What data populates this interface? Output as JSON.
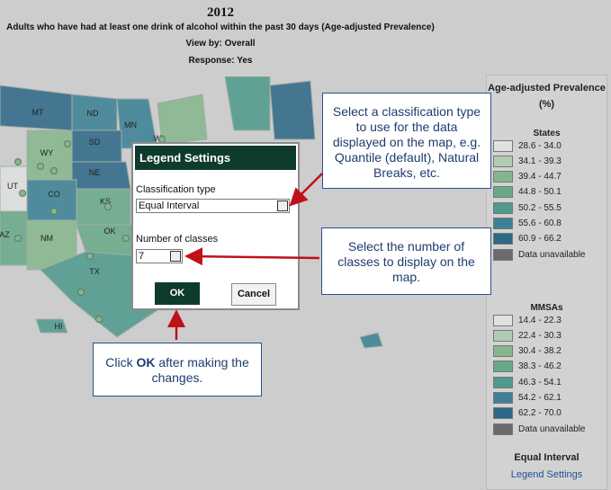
{
  "header": {
    "year": "2012",
    "title": "Adults who have had at least one drink of alcohol within the past 30 days (Age-adjusted Prevalence)",
    "view_by": "View by: Overall",
    "response": "Response: Yes"
  },
  "map": {
    "state_labels": [
      "MT",
      "ND",
      "MN",
      "SD",
      "WY",
      "WI",
      "NE",
      "UT",
      "CO",
      "KS",
      "AZ",
      "NM",
      "OK",
      "TX",
      "HI"
    ]
  },
  "legend": {
    "title": "Age-adjusted Prevalence",
    "unit": "(%)",
    "states_label": "States",
    "states": [
      {
        "label": "28.6 - 34.0",
        "color": "#dfe2df"
      },
      {
        "label": "34.1 - 39.3",
        "color": "#b2ccb2"
      },
      {
        "label": "39.4 - 44.7",
        "color": "#86b68c"
      },
      {
        "label": "44.8 - 50.1",
        "color": "#68a988"
      },
      {
        "label": "50.2 - 55.5",
        "color": "#4f9a8c"
      },
      {
        "label": "55.6 - 60.8",
        "color": "#3b8095"
      },
      {
        "label": "60.9 - 66.2",
        "color": "#2d6887"
      },
      {
        "label": "Data unavailable",
        "color": "#6b6b6b"
      }
    ],
    "mmsas_label": "MMSAs",
    "mmsas": [
      {
        "label": "14.4 - 22.3",
        "color": "#dfe2df"
      },
      {
        "label": "22.4 - 30.3",
        "color": "#b2ccb2"
      },
      {
        "label": "30.4 - 38.2",
        "color": "#86b68c"
      },
      {
        "label": "38.3 - 46.2",
        "color": "#68a988"
      },
      {
        "label": "46.3 - 54.1",
        "color": "#4f9a8c"
      },
      {
        "label": "54.2 - 62.1",
        "color": "#3b8095"
      },
      {
        "label": "62.2 - 70.0",
        "color": "#2d6887"
      },
      {
        "label": "Data unavailable",
        "color": "#6b6b6b"
      }
    ],
    "classification": "Equal Interval",
    "settings_link": "Legend Settings"
  },
  "dialog": {
    "title": "Legend Settings",
    "classification_label": "Classification type",
    "classification_value": "Equal Interval",
    "classes_label": "Number of classes",
    "classes_value": "7",
    "ok": "OK",
    "cancel": "Cancel"
  },
  "callouts": {
    "classification": [
      "Select a classification type",
      "to use for the data",
      "displayed on the map, e.g.",
      "Quantile (default), Natural",
      "Breaks, etc."
    ],
    "classes": [
      "Select the number of",
      "classes to display on the",
      "map."
    ],
    "ok": {
      "before": "Click ",
      "bold": "OK",
      "after": " after making the",
      "line2": "changes."
    }
  }
}
